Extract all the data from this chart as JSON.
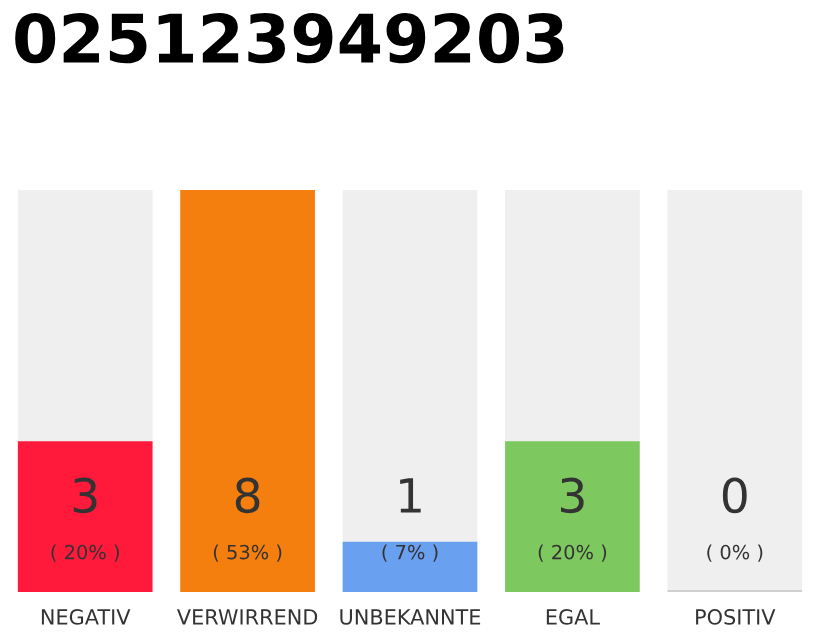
{
  "chart_data": {
    "type": "bar",
    "title": "025123949203",
    "categories": [
      "NEGATIV",
      "VERWIRREND",
      "UNBEKANNTE",
      "EGAL",
      "POSITIV"
    ],
    "values": [
      3,
      8,
      1,
      3,
      0
    ],
    "colors": [
      "#ff1a3c",
      "#f47f0f",
      "#6aa0f0",
      "#7ec95f",
      "#d0d0d0"
    ],
    "value_labels": [
      "3\n( 20% )",
      "8\n( 53% )",
      "1\n( 7% )",
      "3\n( 20% )",
      "0\n( 0% )"
    ],
    "grid": false
  }
}
